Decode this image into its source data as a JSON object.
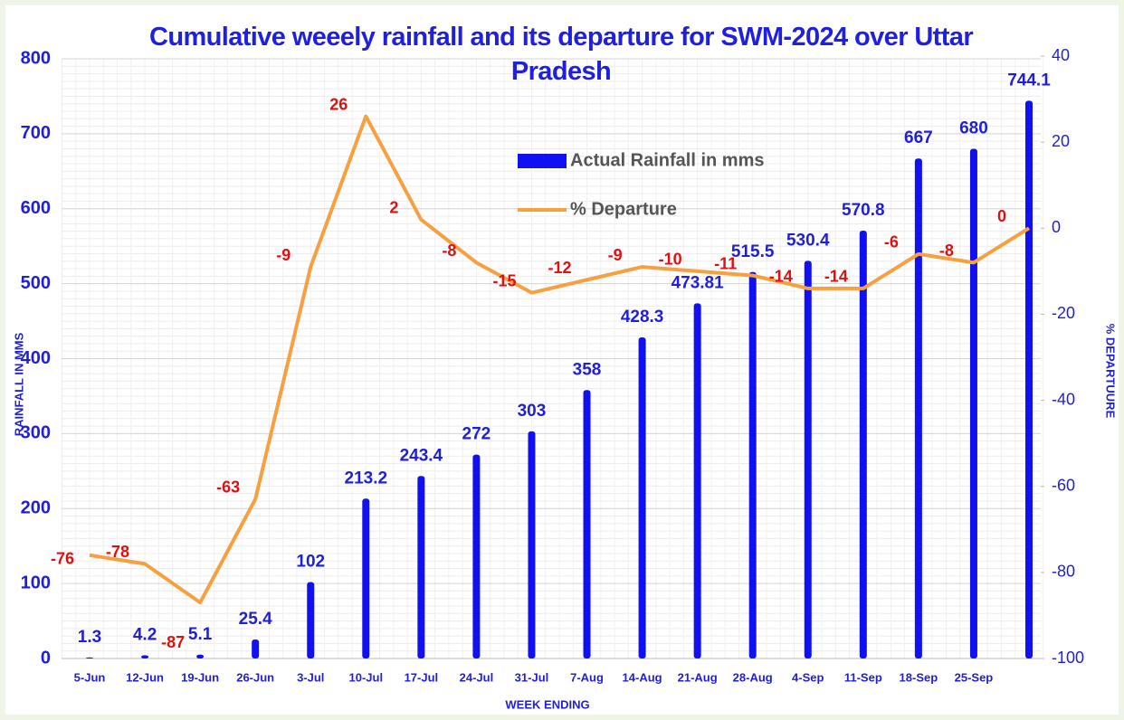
{
  "chart_data": {
    "type": "bar-line",
    "title": "Cumulative weeely rainfall and its departure for SWM-2024 over Uttar Pradesh",
    "x_label": "WEEK ENDING",
    "y_label": "RAINFALL IN MMS",
    "y2_label": "% DEPARTUURE",
    "categories": [
      "5-Jun",
      "12-Jun",
      "19-Jun",
      "26-Jun",
      "3-Jul",
      "10-Jul",
      "17-Jul",
      "24-Jul",
      "31-Jul",
      "7-Aug",
      "14-Aug",
      "21-Aug",
      "28-Aug",
      "4-Sep",
      "11-Sep",
      "18-Sep",
      "25-Sep",
      null
    ],
    "series": [
      {
        "name": "Actual Rainfall in mms",
        "type": "bar",
        "color": "#1010f0",
        "label_color": "#1f1fd8",
        "values": [
          1.3,
          4.2,
          5.1,
          25.4,
          102,
          213.2,
          243.4,
          272,
          303,
          358,
          428.3,
          473.81,
          515.5,
          530.4,
          570.8,
          667,
          680,
          744.1
        ]
      },
      {
        "name": "% Departure",
        "type": "line",
        "axis": "y2",
        "color": "#f7a040",
        "label_color": "#e01010",
        "values": [
          -76,
          -78,
          -87,
          -63,
          -9,
          26,
          2,
          -8,
          -15,
          -12,
          -9,
          -10,
          -11,
          -14,
          -14,
          -6,
          -8,
          0
        ]
      }
    ],
    "ylim": [
      0,
      800
    ],
    "yticks": [
      0,
      100,
      200,
      300,
      400,
      500,
      600,
      700,
      800
    ],
    "y2lim": [
      -100,
      40
    ],
    "y2ticks": [
      -100,
      -80,
      -60,
      -40,
      -20,
      0,
      20,
      40
    ],
    "grid": true
  }
}
